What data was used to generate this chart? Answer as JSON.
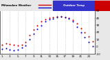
{
  "title_left": "Milwaukee Weather",
  "title_right_blue": "Outdoor Temp",
  "bg_color": "#e8e8e8",
  "plot_bg": "#ffffff",
  "ylim": [
    -10,
    50
  ],
  "ytick_vals": [
    -10,
    0,
    10,
    20,
    30,
    40,
    50
  ],
  "ytick_labels": [
    "-10",
    "0",
    "10",
    "20",
    "30",
    "40",
    "50"
  ],
  "hours": [
    1,
    2,
    3,
    4,
    5,
    6,
    7,
    8,
    9,
    10,
    11,
    12,
    13,
    14,
    15,
    16,
    17,
    18,
    19,
    20,
    21,
    22,
    23,
    24
  ],
  "temp": [
    3,
    5,
    4,
    3,
    2,
    3,
    7,
    16,
    24,
    30,
    35,
    38,
    40,
    41,
    42,
    42,
    41,
    40,
    37,
    32,
    26,
    20,
    14,
    8
  ],
  "windchill": [
    -3,
    -2,
    -4,
    -5,
    -4,
    -1,
    2,
    10,
    18,
    25,
    30,
    35,
    38,
    39,
    41,
    42,
    41,
    39,
    35,
    28,
    20,
    13,
    7,
    1
  ],
  "temp_color": "#cc0000",
  "wc_color": "#0000cc",
  "grid_color": "#bbbbbb",
  "marker_size": 1.5,
  "tick_fontsize": 3.0,
  "title_fontsize": 2.8,
  "grid_hours": [
    1,
    3,
    5,
    7,
    9,
    11,
    13,
    15,
    17,
    19,
    21,
    23
  ],
  "xtick_hours": [
    1,
    3,
    5,
    7,
    9,
    11,
    13,
    15,
    17,
    19,
    21,
    23
  ],
  "xtick_labels": [
    "1",
    "3",
    "5",
    "7",
    "9",
    "11",
    "13",
    "15",
    "17",
    "19",
    "21",
    "23"
  ]
}
